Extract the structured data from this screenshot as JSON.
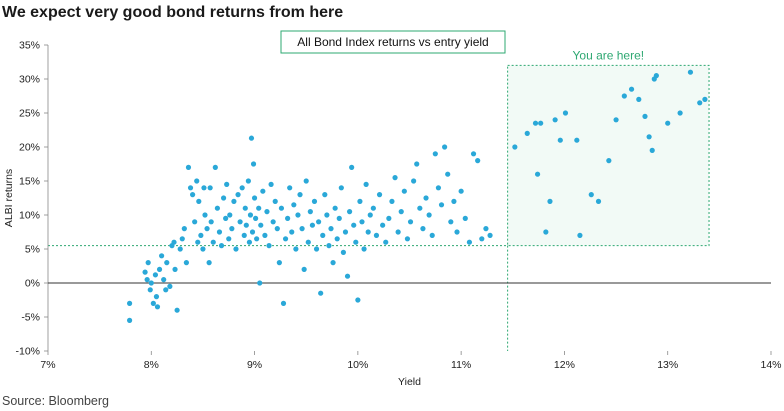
{
  "header": {
    "title": "We expect very good bond returns from here"
  },
  "footer": {
    "source": "Source: Bloomberg"
  },
  "colors": {
    "point": "#2aa8d8",
    "accent": "#2ea872",
    "highlight_fill": "#f2faf6",
    "zero_line": "#333333"
  },
  "chart_data": {
    "type": "scatter",
    "legend_label": "All Bond Index returns vs entry yield",
    "legend_placement": "top-center",
    "xlabel": "Yield",
    "ylabel": "ALBI returns",
    "xlim": [
      0.07,
      0.14
    ],
    "ylim": [
      -0.1,
      0.35
    ],
    "grid": false,
    "x_ticks": [
      0.07,
      0.08,
      0.09,
      0.1,
      0.11,
      0.12,
      0.13,
      0.14
    ],
    "x_tick_labels": [
      "7%",
      "8%",
      "9%",
      "10%",
      "11%",
      "12%",
      "13%",
      "14%"
    ],
    "y_ticks": [
      -0.1,
      -0.05,
      0.0,
      0.05,
      0.1,
      0.15,
      0.2,
      0.25,
      0.3,
      0.35
    ],
    "y_tick_labels": [
      "-10%",
      "-5%",
      "0%",
      "5%",
      "10%",
      "15%",
      "20%",
      "25%",
      "30%",
      "35%"
    ],
    "annotation": {
      "text": "You are here!",
      "x_from": 0.1145,
      "x_to": 0.134,
      "y_from": 0.055,
      "y_to": 0.32
    },
    "series": [
      {
        "points": [
          [
            0.0779,
            -0.03
          ],
          [
            0.0779,
            -0.055
          ],
          [
            0.0794,
            0.016
          ],
          [
            0.0796,
            0.005
          ],
          [
            0.0797,
            0.03
          ],
          [
            0.0799,
            -0.01
          ],
          [
            0.08,
            0.0
          ],
          [
            0.0802,
            -0.03
          ],
          [
            0.0804,
            0.012
          ],
          [
            0.0805,
            -0.02
          ],
          [
            0.0806,
            -0.035
          ],
          [
            0.0808,
            0.02
          ],
          [
            0.081,
            0.04
          ],
          [
            0.0812,
            0.005
          ],
          [
            0.0814,
            -0.01
          ],
          [
            0.0815,
            0.03
          ],
          [
            0.0818,
            -0.005
          ],
          [
            0.082,
            0.055
          ],
          [
            0.0822,
            0.06
          ],
          [
            0.0823,
            0.02
          ],
          [
            0.0825,
            -0.04
          ],
          [
            0.0828,
            0.05
          ],
          [
            0.083,
            0.065
          ],
          [
            0.0832,
            0.08
          ],
          [
            0.0834,
            0.03
          ],
          [
            0.0836,
            0.17
          ],
          [
            0.0838,
            0.14
          ],
          [
            0.084,
            0.13
          ],
          [
            0.0842,
            0.09
          ],
          [
            0.0844,
            0.15
          ],
          [
            0.0845,
            0.06
          ],
          [
            0.0846,
            0.12
          ],
          [
            0.0848,
            0.07
          ],
          [
            0.085,
            0.05
          ],
          [
            0.0851,
            0.14
          ],
          [
            0.0852,
            0.1
          ],
          [
            0.0854,
            0.08
          ],
          [
            0.0856,
            0.03
          ],
          [
            0.0857,
            0.14
          ],
          [
            0.0858,
            0.09
          ],
          [
            0.086,
            0.06
          ],
          [
            0.0862,
            0.17
          ],
          [
            0.0864,
            0.11
          ],
          [
            0.0866,
            0.075
          ],
          [
            0.0868,
            0.055
          ],
          [
            0.087,
            0.125
          ],
          [
            0.0872,
            0.095
          ],
          [
            0.0873,
            0.145
          ],
          [
            0.0875,
            0.065
          ],
          [
            0.0876,
            0.1
          ],
          [
            0.0878,
            0.08
          ],
          [
            0.088,
            0.12
          ],
          [
            0.0882,
            0.05
          ],
          [
            0.0884,
            0.13
          ],
          [
            0.0886,
            0.09
          ],
          [
            0.0888,
            0.14
          ],
          [
            0.089,
            0.07
          ],
          [
            0.0891,
            0.11
          ],
          [
            0.0892,
            0.085
          ],
          [
            0.0894,
            0.15
          ],
          [
            0.0895,
            0.06
          ],
          [
            0.0896,
            0.1
          ],
          [
            0.0897,
            0.213
          ],
          [
            0.0898,
            0.075
          ],
          [
            0.0899,
            0.175
          ],
          [
            0.09,
            0.125
          ],
          [
            0.0901,
            0.095
          ],
          [
            0.0902,
            0.065
          ],
          [
            0.0904,
            0.11
          ],
          [
            0.0905,
            0.0
          ],
          [
            0.0906,
            0.085
          ],
          [
            0.0908,
            0.135
          ],
          [
            0.091,
            0.07
          ],
          [
            0.0912,
            0.105
          ],
          [
            0.0914,
            0.055
          ],
          [
            0.0916,
            0.145
          ],
          [
            0.0918,
            0.09
          ],
          [
            0.092,
            0.12
          ],
          [
            0.0922,
            0.08
          ],
          [
            0.0924,
            0.03
          ],
          [
            0.0926,
            0.11
          ],
          [
            0.0928,
            -0.03
          ],
          [
            0.093,
            0.065
          ],
          [
            0.0932,
            0.095
          ],
          [
            0.0934,
            0.14
          ],
          [
            0.0936,
            0.075
          ],
          [
            0.0938,
            0.115
          ],
          [
            0.094,
            0.05
          ],
          [
            0.0942,
            0.1
          ],
          [
            0.0944,
            0.13
          ],
          [
            0.0946,
            0.08
          ],
          [
            0.0948,
            0.02
          ],
          [
            0.095,
            0.15
          ],
          [
            0.0952,
            0.06
          ],
          [
            0.0954,
            0.105
          ],
          [
            0.0956,
            0.085
          ],
          [
            0.0958,
            0.12
          ],
          [
            0.096,
            0.05
          ],
          [
            0.0962,
            0.09
          ],
          [
            0.0964,
            -0.015
          ],
          [
            0.0966,
            0.07
          ],
          [
            0.0968,
            0.13
          ],
          [
            0.097,
            0.1
          ],
          [
            0.0972,
            0.055
          ],
          [
            0.0974,
            0.08
          ],
          [
            0.0976,
            0.03
          ],
          [
            0.0978,
            0.11
          ],
          [
            0.098,
            0.065
          ],
          [
            0.0982,
            0.095
          ],
          [
            0.0984,
            0.14
          ],
          [
            0.0986,
            0.045
          ],
          [
            0.0988,
            0.075
          ],
          [
            0.099,
            0.01
          ],
          [
            0.0992,
            0.105
          ],
          [
            0.0994,
            0.17
          ],
          [
            0.0996,
            0.085
          ],
          [
            0.0998,
            0.06
          ],
          [
            0.1,
            -0.025
          ],
          [
            0.1002,
            0.12
          ],
          [
            0.1004,
            0.09
          ],
          [
            0.1006,
            0.05
          ],
          [
            0.1008,
            0.145
          ],
          [
            0.101,
            0.075
          ],
          [
            0.1012,
            0.1
          ],
          [
            0.1015,
            0.11
          ],
          [
            0.1018,
            0.07
          ],
          [
            0.1021,
            0.13
          ],
          [
            0.1024,
            0.085
          ],
          [
            0.1027,
            0.06
          ],
          [
            0.103,
            0.095
          ],
          [
            0.1033,
            0.12
          ],
          [
            0.1036,
            0.155
          ],
          [
            0.1039,
            0.075
          ],
          [
            0.1042,
            0.105
          ],
          [
            0.1045,
            0.135
          ],
          [
            0.1048,
            0.065
          ],
          [
            0.1051,
            0.09
          ],
          [
            0.1054,
            0.15
          ],
          [
            0.1057,
            0.175
          ],
          [
            0.106,
            0.11
          ],
          [
            0.1063,
            0.08
          ],
          [
            0.1066,
            0.125
          ],
          [
            0.1069,
            0.1
          ],
          [
            0.1072,
            0.07
          ],
          [
            0.1075,
            0.19
          ],
          [
            0.1078,
            0.14
          ],
          [
            0.1081,
            0.115
          ],
          [
            0.1084,
            0.2
          ],
          [
            0.1087,
            0.16
          ],
          [
            0.109,
            0.09
          ],
          [
            0.1093,
            0.12
          ],
          [
            0.1096,
            0.075
          ],
          [
            0.11,
            0.135
          ],
          [
            0.1104,
            0.095
          ],
          [
            0.1108,
            0.06
          ],
          [
            0.1112,
            0.19
          ],
          [
            0.1116,
            0.18
          ],
          [
            0.112,
            0.065
          ],
          [
            0.1124,
            0.08
          ],
          [
            0.1128,
            0.07
          ],
          [
            0.1152,
            0.2
          ],
          [
            0.1164,
            0.22
          ],
          [
            0.1172,
            0.235
          ],
          [
            0.1174,
            0.16
          ],
          [
            0.1177,
            0.235
          ],
          [
            0.1182,
            0.075
          ],
          [
            0.1186,
            0.12
          ],
          [
            0.1191,
            0.24
          ],
          [
            0.1196,
            0.21
          ],
          [
            0.1201,
            0.25
          ],
          [
            0.1212,
            0.21
          ],
          [
            0.1215,
            0.07
          ],
          [
            0.1226,
            0.13
          ],
          [
            0.1233,
            0.12
          ],
          [
            0.1243,
            0.18
          ],
          [
            0.125,
            0.24
          ],
          [
            0.1258,
            0.275
          ],
          [
            0.1265,
            0.285
          ],
          [
            0.1272,
            0.27
          ],
          [
            0.1278,
            0.245
          ],
          [
            0.1282,
            0.215
          ],
          [
            0.1285,
            0.195
          ],
          [
            0.1287,
            0.3
          ],
          [
            0.1289,
            0.305
          ],
          [
            0.13,
            0.235
          ],
          [
            0.1312,
            0.25
          ],
          [
            0.1322,
            0.31
          ],
          [
            0.1331,
            0.265
          ],
          [
            0.1336,
            0.27
          ]
        ]
      }
    ]
  }
}
